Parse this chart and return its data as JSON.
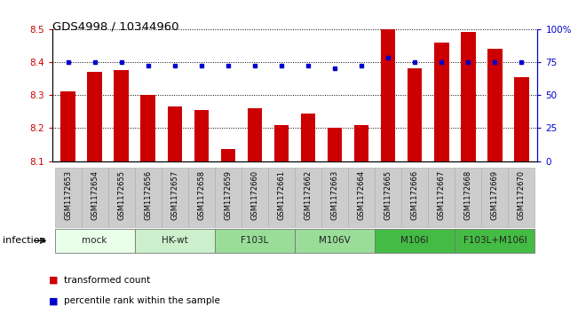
{
  "title": "GDS4998 / 10344960",
  "samples": [
    "GSM1172653",
    "GSM1172654",
    "GSM1172655",
    "GSM1172656",
    "GSM1172657",
    "GSM1172658",
    "GSM1172659",
    "GSM1172660",
    "GSM1172661",
    "GSM1172662",
    "GSM1172663",
    "GSM1172664",
    "GSM1172665",
    "GSM1172666",
    "GSM1172667",
    "GSM1172668",
    "GSM1172669",
    "GSM1172670"
  ],
  "bar_values": [
    8.31,
    8.37,
    8.375,
    8.3,
    8.265,
    8.255,
    8.135,
    8.26,
    8.21,
    8.245,
    8.2,
    8.21,
    8.5,
    8.38,
    8.46,
    8.49,
    8.44,
    8.355
  ],
  "percentile_values": [
    75,
    75,
    75,
    72,
    72,
    72,
    72,
    72,
    72,
    72,
    70,
    72,
    78,
    75,
    75,
    75,
    75,
    75
  ],
  "bar_color": "#cc0000",
  "percentile_color": "#0000cc",
  "ylim_left": [
    8.1,
    8.5
  ],
  "ylim_right": [
    0,
    100
  ],
  "yticks_left": [
    8.1,
    8.2,
    8.3,
    8.4,
    8.5
  ],
  "yticks_right": [
    0,
    25,
    50,
    75,
    100
  ],
  "ytick_labels_right": [
    "0",
    "25",
    "50",
    "75",
    "100%"
  ],
  "groups": [
    {
      "label": "mock",
      "start": 0,
      "end": 2,
      "fill": "#e8ffe8"
    },
    {
      "label": "HK-wt",
      "start": 3,
      "end": 5,
      "fill": "#ccf0cc"
    },
    {
      "label": "F103L",
      "start": 6,
      "end": 8,
      "fill": "#99dd99"
    },
    {
      "label": "M106V",
      "start": 9,
      "end": 11,
      "fill": "#99dd99"
    },
    {
      "label": "M106I",
      "start": 12,
      "end": 14,
      "fill": "#44bb44"
    },
    {
      "label": "F103L+M106I",
      "start": 15,
      "end": 17,
      "fill": "#44bb44"
    }
  ],
  "infection_label": "infection",
  "legend_bar_label": "transformed count",
  "legend_pct_label": "percentile rank within the sample",
  "bg_color": "#ffffff",
  "tick_label_color_left": "#cc0000",
  "tick_label_color_right": "#0000cc",
  "sample_box_color": "#cccccc",
  "sample_box_edge": "#aaaaaa"
}
